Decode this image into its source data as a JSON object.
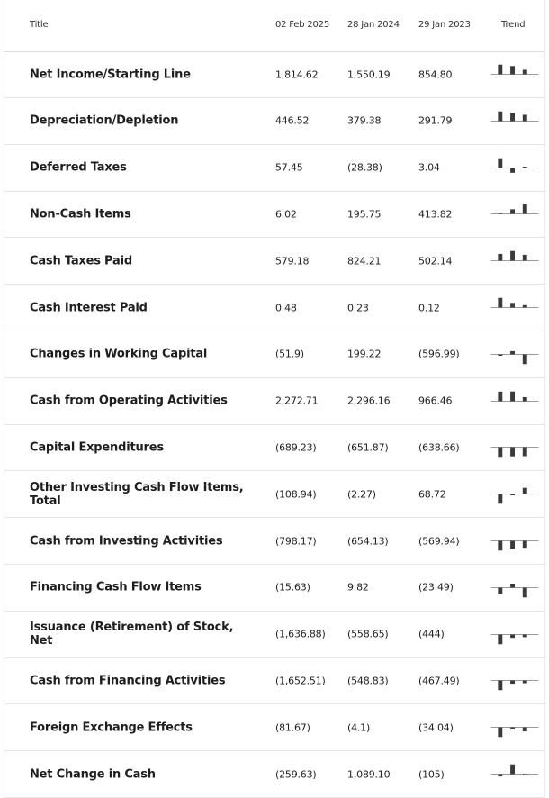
{
  "header": {
    "title": "Title",
    "col1": "02 Feb 2025",
    "col2": "28 Jan 2024",
    "col3": "29 Jan 2023",
    "trend": "Trend"
  },
  "rows": [
    {
      "label": "Net Income/Starting Line",
      "v1": "1,814.62",
      "v2": "1,550.19",
      "v3": "854.80",
      "trend": [
        1814.62,
        1550.19,
        854.8
      ]
    },
    {
      "label": "Depreciation/Depletion",
      "v1": "446.52",
      "v2": "379.38",
      "v3": "291.79",
      "trend": [
        446.52,
        379.38,
        291.79
      ]
    },
    {
      "label": "Deferred Taxes",
      "v1": "57.45",
      "v2": "(28.38)",
      "v3": "3.04",
      "trend": [
        57.45,
        -28.38,
        3.04
      ]
    },
    {
      "label": "Non-Cash Items",
      "v1": "6.02",
      "v2": "195.75",
      "v3": "413.82",
      "trend": [
        6.02,
        195.75,
        413.82
      ]
    },
    {
      "label": "Cash Taxes Paid",
      "v1": "579.18",
      "v2": "824.21",
      "v3": "502.14",
      "trend": [
        579.18,
        824.21,
        502.14
      ]
    },
    {
      "label": "Cash Interest Paid",
      "v1": "0.48",
      "v2": "0.23",
      "v3": "0.12",
      "trend": [
        0.48,
        0.23,
        0.12
      ]
    },
    {
      "label": "Changes in Working Capital",
      "v1": "(51.9)",
      "v2": "199.22",
      "v3": "(596.99)",
      "trend": [
        -51.9,
        199.22,
        -596.99
      ]
    },
    {
      "label": "Cash from Operating Activities",
      "v1": "2,272.71",
      "v2": "2,296.16",
      "v3": "966.46",
      "trend": [
        2272.71,
        2296.16,
        966.46
      ]
    },
    {
      "label": "Capital Expenditures",
      "v1": "(689.23)",
      "v2": "(651.87)",
      "v3": "(638.66)",
      "trend": [
        -689.23,
        -651.87,
        -638.66
      ]
    },
    {
      "label": "Other Investing Cash Flow Items, Total",
      "v1": "(108.94)",
      "v2": "(2.27)",
      "v3": "68.72",
      "trend": [
        -108.94,
        -2.27,
        68.72
      ]
    },
    {
      "label": "Cash from Investing Activities",
      "v1": "(798.17)",
      "v2": "(654.13)",
      "v3": "(569.94)",
      "trend": [
        -798.17,
        -654.13,
        -569.94
      ]
    },
    {
      "label": "Financing Cash Flow Items",
      "v1": "(15.63)",
      "v2": "9.82",
      "v3": "(23.49)",
      "trend": [
        -15.63,
        9.82,
        -23.49
      ]
    },
    {
      "label": "Issuance (Retirement) of Stock, Net",
      "v1": "(1,636.88)",
      "v2": "(558.65)",
      "v3": "(444)",
      "trend": [
        -1636.88,
        -558.65,
        -444
      ]
    },
    {
      "label": "Cash from Financing Activities",
      "v1": "(1,652.51)",
      "v2": "(548.83)",
      "v3": "(467.49)",
      "trend": [
        -1652.51,
        -548.83,
        -467.49
      ]
    },
    {
      "label": "Foreign Exchange Effects",
      "v1": "(81.67)",
      "v2": "(4.1)",
      "v3": "(34.04)",
      "trend": [
        -81.67,
        -4.1,
        -34.04
      ]
    },
    {
      "label": "Net Change in Cash",
      "v1": "(259.63)",
      "v2": "1,089.10",
      "v3": "(105)",
      "trend": [
        -259.63,
        1089.1,
        -105
      ]
    }
  ],
  "colors": {
    "text": "#1e1e1e",
    "bar": "#3a3a3a",
    "baseline": "#9a9a9a",
    "divider": "#e6e6e6"
  }
}
